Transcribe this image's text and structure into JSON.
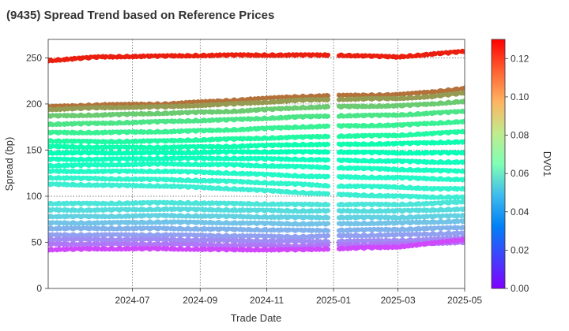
{
  "chart_data": {
    "type": "scatter",
    "title": "(9435)   Spread Trend based on Reference Prices",
    "xlabel": "Trade Date",
    "ylabel": "Spread (bp)",
    "x_range": [
      "2024-04-15",
      "2025-05-01"
    ],
    "ylim": [
      0,
      270
    ],
    "x_ticks": [
      "2024-07",
      "2024-09",
      "2024-11",
      "2025-01",
      "2025-03",
      "2025-05"
    ],
    "x_tick_dates": [
      "2024-07-01",
      "2024-09-01",
      "2024-11-01",
      "2025-01-01",
      "2025-03-01",
      "2025-05-01"
    ],
    "y_ticks": [
      0,
      50,
      100,
      150,
      200,
      250
    ],
    "grid": true,
    "colorbar": {
      "label": "DV01",
      "range": [
        0,
        0.13
      ],
      "ticks": [
        "0.00",
        "0.02",
        "0.04",
        "0.06",
        "0.08",
        "0.10",
        "0.12"
      ],
      "colormap": "rainbow"
    },
    "series": [
      {
        "dv01": 0.125,
        "points": [
          [
            "2024-04-15",
            247
          ],
          [
            "2024-06-01",
            251
          ],
          [
            "2024-08-01",
            252
          ],
          [
            "2024-10-01",
            253
          ],
          [
            "2024-12-01",
            253
          ],
          [
            "2025-01-01",
            253
          ],
          [
            "2025-03-01",
            251
          ],
          [
            "2025-04-01",
            254
          ],
          [
            "2025-05-01",
            257
          ]
        ]
      },
      {
        "dv01": 0.111,
        "points": [
          [
            "2024-04-15",
            197
          ],
          [
            "2024-06-01",
            199
          ],
          [
            "2024-08-01",
            200
          ],
          [
            "2024-10-01",
            204
          ],
          [
            "2024-12-01",
            208
          ],
          [
            "2025-01-01",
            209
          ],
          [
            "2025-03-01",
            210
          ],
          [
            "2025-04-01",
            213
          ],
          [
            "2025-05-01",
            217
          ]
        ]
      },
      {
        "dv01": 0.103,
        "points": [
          [
            "2024-04-15",
            194
          ],
          [
            "2024-06-01",
            196
          ],
          [
            "2024-08-01",
            197
          ],
          [
            "2024-10-01",
            200
          ],
          [
            "2024-12-01",
            204
          ],
          [
            "2025-01-01",
            205
          ],
          [
            "2025-03-01",
            206
          ],
          [
            "2025-04-01",
            208
          ],
          [
            "2025-05-01",
            212
          ]
        ]
      },
      {
        "dv01": 0.092,
        "points": [
          [
            "2024-04-15",
            187
          ],
          [
            "2024-06-01",
            188
          ],
          [
            "2024-08-01",
            190
          ],
          [
            "2024-10-01",
            192
          ],
          [
            "2024-12-01",
            196
          ],
          [
            "2025-01-01",
            197
          ],
          [
            "2025-03-01",
            198
          ],
          [
            "2025-04-01",
            200
          ],
          [
            "2025-05-01",
            203
          ]
        ]
      },
      {
        "dv01": 0.084,
        "points": [
          [
            "2024-04-15",
            178
          ],
          [
            "2024-06-01",
            179
          ],
          [
            "2024-08-01",
            181
          ],
          [
            "2024-10-01",
            183
          ],
          [
            "2024-12-01",
            186
          ],
          [
            "2025-01-01",
            187
          ],
          [
            "2025-03-01",
            188
          ],
          [
            "2025-04-01",
            190
          ],
          [
            "2025-05-01",
            192
          ]
        ]
      },
      {
        "dv01": 0.079,
        "points": [
          [
            "2024-04-15",
            169
          ],
          [
            "2024-06-01",
            169
          ],
          [
            "2024-08-01",
            170
          ],
          [
            "2024-10-01",
            172
          ],
          [
            "2024-12-01",
            175
          ],
          [
            "2025-01-01",
            176
          ],
          [
            "2025-03-01",
            177
          ],
          [
            "2025-04-01",
            179
          ],
          [
            "2025-05-01",
            181
          ]
        ]
      },
      {
        "dv01": 0.073,
        "points": [
          [
            "2024-04-15",
            160
          ],
          [
            "2024-06-01",
            159
          ],
          [
            "2024-08-01",
            160
          ],
          [
            "2024-10-01",
            162
          ],
          [
            "2024-12-01",
            164
          ],
          [
            "2025-01-01",
            165
          ],
          [
            "2025-03-01",
            166
          ],
          [
            "2025-04-01",
            168
          ],
          [
            "2025-05-01",
            170
          ]
        ]
      },
      {
        "dv01": 0.068,
        "points": [
          [
            "2024-04-15",
            154
          ],
          [
            "2024-06-01",
            153
          ],
          [
            "2024-08-01",
            153
          ],
          [
            "2024-10-01",
            154
          ],
          [
            "2024-12-01",
            156
          ],
          [
            "2025-01-01",
            156
          ],
          [
            "2025-03-01",
            157
          ],
          [
            "2025-04-01",
            158
          ],
          [
            "2025-05-01",
            159
          ]
        ]
      },
      {
        "dv01": 0.064,
        "points": [
          [
            "2024-04-15",
            147
          ],
          [
            "2024-06-01",
            147
          ],
          [
            "2024-08-01",
            147
          ],
          [
            "2024-10-01",
            148
          ],
          [
            "2024-12-01",
            148
          ],
          [
            "2025-01-01",
            148
          ],
          [
            "2025-03-01",
            147
          ],
          [
            "2025-04-01",
            147
          ],
          [
            "2025-05-01",
            147
          ]
        ]
      },
      {
        "dv01": 0.061,
        "points": [
          [
            "2024-04-15",
            140
          ],
          [
            "2024-06-01",
            140
          ],
          [
            "2024-08-01",
            141
          ],
          [
            "2024-10-01",
            141
          ],
          [
            "2024-12-01",
            140
          ],
          [
            "2025-01-01",
            139
          ],
          [
            "2025-03-01",
            138
          ],
          [
            "2025-04-01",
            137
          ],
          [
            "2025-05-01",
            137
          ]
        ]
      },
      {
        "dv01": 0.059,
        "points": [
          [
            "2024-04-15",
            133
          ],
          [
            "2024-06-01",
            134
          ],
          [
            "2024-08-01",
            135
          ],
          [
            "2024-10-01",
            134
          ],
          [
            "2024-12-01",
            132
          ],
          [
            "2025-01-01",
            131
          ],
          [
            "2025-03-01",
            129
          ],
          [
            "2025-04-01",
            128
          ],
          [
            "2025-05-01",
            127
          ]
        ]
      },
      {
        "dv01": 0.056,
        "points": [
          [
            "2024-04-15",
            127
          ],
          [
            "2024-06-01",
            127
          ],
          [
            "2024-08-01",
            127
          ],
          [
            "2024-10-01",
            125
          ],
          [
            "2024-12-01",
            122
          ],
          [
            "2025-01-01",
            121
          ],
          [
            "2025-03-01",
            120
          ],
          [
            "2025-04-01",
            119
          ],
          [
            "2025-05-01",
            118
          ]
        ]
      },
      {
        "dv01": 0.053,
        "points": [
          [
            "2024-04-15",
            120
          ],
          [
            "2024-06-01",
            119
          ],
          [
            "2024-08-01",
            118
          ],
          [
            "2024-10-01",
            116
          ],
          [
            "2024-12-01",
            113
          ],
          [
            "2025-01-01",
            111
          ],
          [
            "2025-03-01",
            110
          ],
          [
            "2025-04-01",
            108
          ],
          [
            "2025-05-01",
            108
          ]
        ]
      },
      {
        "dv01": 0.05,
        "points": [
          [
            "2024-04-15",
            113
          ],
          [
            "2024-06-01",
            112
          ],
          [
            "2024-08-01",
            111
          ],
          [
            "2024-10-01",
            108
          ],
          [
            "2024-12-01",
            104
          ],
          [
            "2025-01-01",
            102
          ],
          [
            "2025-03-01",
            100
          ],
          [
            "2025-04-01",
            99
          ],
          [
            "2025-05-01",
            99
          ]
        ]
      },
      {
        "dv01": 0.046,
        "points": [
          [
            "2024-04-15",
            92
          ],
          [
            "2024-06-01",
            92
          ],
          [
            "2024-08-01",
            93
          ],
          [
            "2024-10-01",
            92
          ],
          [
            "2024-12-01",
            91
          ],
          [
            "2025-01-01",
            91
          ],
          [
            "2025-03-01",
            91
          ],
          [
            "2025-04-01",
            92
          ],
          [
            "2025-05-01",
            94
          ]
        ]
      },
      {
        "dv01": 0.043,
        "points": [
          [
            "2024-04-15",
            85
          ],
          [
            "2024-06-01",
            85
          ],
          [
            "2024-08-01",
            86
          ],
          [
            "2024-10-01",
            85
          ],
          [
            "2024-12-01",
            84
          ],
          [
            "2025-01-01",
            84
          ],
          [
            "2025-03-01",
            84
          ],
          [
            "2025-04-01",
            85
          ],
          [
            "2025-05-01",
            86
          ]
        ]
      },
      {
        "dv01": 0.04,
        "points": [
          [
            "2024-04-15",
            78
          ],
          [
            "2024-06-01",
            78
          ],
          [
            "2024-08-01",
            79
          ],
          [
            "2024-10-01",
            78
          ],
          [
            "2024-12-01",
            77
          ],
          [
            "2025-01-01",
            77
          ],
          [
            "2025-03-01",
            77
          ],
          [
            "2025-04-01",
            78
          ],
          [
            "2025-05-01",
            79
          ]
        ]
      },
      {
        "dv01": 0.036,
        "points": [
          [
            "2024-04-15",
            71
          ],
          [
            "2024-06-01",
            71
          ],
          [
            "2024-08-01",
            72
          ],
          [
            "2024-10-01",
            71
          ],
          [
            "2024-12-01",
            70
          ],
          [
            "2025-01-01",
            70
          ],
          [
            "2025-03-01",
            71
          ],
          [
            "2025-04-01",
            72
          ],
          [
            "2025-05-01",
            73
          ]
        ]
      },
      {
        "dv01": 0.032,
        "points": [
          [
            "2024-04-15",
            65
          ],
          [
            "2024-06-01",
            65
          ],
          [
            "2024-08-01",
            65
          ],
          [
            "2024-10-01",
            64
          ],
          [
            "2024-12-01",
            63
          ],
          [
            "2025-01-01",
            63
          ],
          [
            "2025-03-01",
            64
          ],
          [
            "2025-04-01",
            65
          ],
          [
            "2025-05-01",
            66
          ]
        ]
      },
      {
        "dv01": 0.028,
        "points": [
          [
            "2024-04-15",
            58
          ],
          [
            "2024-06-01",
            58
          ],
          [
            "2024-08-01",
            58
          ],
          [
            "2024-10-01",
            57
          ],
          [
            "2024-12-01",
            56
          ],
          [
            "2025-01-01",
            57
          ],
          [
            "2025-03-01",
            58
          ],
          [
            "2025-04-01",
            59
          ],
          [
            "2025-05-01",
            60
          ]
        ]
      },
      {
        "dv01": 0.024,
        "points": [
          [
            "2024-04-15",
            53
          ],
          [
            "2024-06-01",
            53
          ],
          [
            "2024-08-01",
            53
          ],
          [
            "2024-10-01",
            52
          ],
          [
            "2024-12-01",
            51
          ],
          [
            "2025-01-01",
            51
          ],
          [
            "2025-03-01",
            52
          ],
          [
            "2025-04-01",
            53
          ],
          [
            "2025-05-01",
            55
          ]
        ]
      },
      {
        "dv01": 0.02,
        "points": [
          [
            "2024-04-15",
            48
          ],
          [
            "2024-06-01",
            48
          ],
          [
            "2024-08-01",
            48
          ],
          [
            "2024-10-01",
            47
          ],
          [
            "2024-12-01",
            46
          ],
          [
            "2025-01-01",
            47
          ],
          [
            "2025-03-01",
            48
          ],
          [
            "2025-04-01",
            49
          ],
          [
            "2025-05-01",
            50
          ]
        ]
      },
      {
        "dv01": 0.012,
        "points": [
          [
            "2024-04-15",
            42
          ],
          [
            "2024-06-01",
            43
          ],
          [
            "2024-08-01",
            43
          ],
          [
            "2024-10-01",
            42
          ],
          [
            "2024-12-01",
            42
          ],
          [
            "2025-01-01",
            43
          ],
          [
            "2025-03-01",
            45
          ],
          [
            "2025-04-01",
            49
          ],
          [
            "2025-05-01",
            53
          ]
        ]
      }
    ]
  }
}
